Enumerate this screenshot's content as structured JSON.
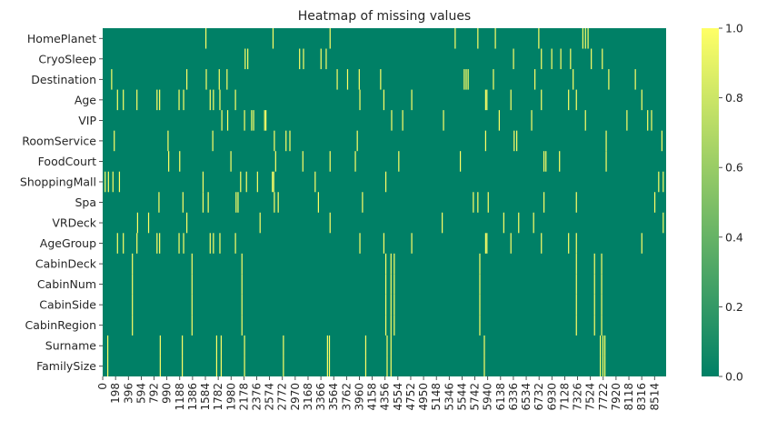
{
  "chart_data": {
    "type": "heatmap",
    "title": "Heatmap of missing values",
    "xlabel": "",
    "ylabel": "",
    "colormap": "summer",
    "color_low": "#008066",
    "color_high": "#ffff66",
    "vmin": 0.0,
    "vmax": 1.0,
    "n_rows_total": 8693,
    "rows": [
      "HomePlanet",
      "CryoSleep",
      "Destination",
      "Age",
      "VIP",
      "RoomService",
      "FoodCourt",
      "ShoppingMall",
      "Spa",
      "VRDeck",
      "AgeGroup",
      "CabinDeck",
      "CabinNum",
      "CabinSide",
      "CabinRegion",
      "Surname",
      "FamilySize"
    ],
    "x_tick_labels": [
      "0",
      "198",
      "396",
      "594",
      "792",
      "990",
      "1188",
      "1386",
      "1584",
      "1782",
      "1980",
      "2178",
      "2376",
      "2574",
      "2772",
      "2970",
      "3168",
      "3366",
      "3564",
      "3762",
      "3960",
      "4158",
      "4356",
      "4554",
      "4752",
      "4950",
      "5148",
      "5346",
      "5544",
      "5742",
      "5940",
      "6138",
      "6336",
      "6534",
      "6732",
      "6930",
      "7128",
      "7326",
      "7524",
      "7722",
      "7920",
      "8118",
      "8316",
      "8514"
    ],
    "colorbar_ticks": [
      "0.0",
      "0.2",
      "0.4",
      "0.6",
      "0.8",
      "1.0"
    ],
    "colorbar_tick_values": [
      0.0,
      0.2,
      0.4,
      0.6,
      0.8,
      1.0
    ],
    "missing_row_indices": [
      [
        1584,
        2620,
        3500,
        5430,
        5780,
        6050,
        6720,
        7400,
        7440,
        7480
      ],
      [
        2190,
        2230,
        3030,
        3090,
        3360,
        3440,
        6330,
        6760,
        6920,
        7060,
        7210,
        7530,
        7700
      ],
      [
        130,
        1290,
        1590,
        1790,
        1910,
        3610,
        3770,
        3950,
        4280,
        5570,
        5600,
        5630,
        6020,
        6660,
        7250,
        7800,
        8210
      ],
      [
        220,
        310,
        520,
        830,
        870,
        1170,
        1240,
        1650,
        1700,
        1800,
        2040,
        3960,
        4330,
        4760,
        5900,
        5920,
        6290,
        6760,
        7180,
        7300,
        8310
      ],
      [
        1830,
        1920,
        2180,
        2290,
        2320,
        2490,
        2510,
        4450,
        4620,
        5250,
        6110,
        6610,
        7440,
        8080,
        8400,
        8460
      ],
      [
        170,
        1000,
        1690,
        2640,
        2820,
        2880,
        3920,
        5900,
        6340,
        6380,
        7760,
        8620
      ],
      [
        1010,
        1180,
        1970,
        2660,
        3080,
        3500,
        3890,
        4560,
        5510,
        6800,
        6830,
        7040,
        7760
      ],
      [
        30,
        80,
        150,
        250,
        1540,
        2120,
        2210,
        2380,
        2610,
        2630,
        3270,
        4360,
        8570,
        8640
      ],
      [
        860,
        1230,
        1540,
        1620,
        2050,
        2080,
        2640,
        2700,
        3320,
        4000,
        5710,
        5780,
        5940,
        6800,
        7300,
        8510
      ],
      [
        530,
        700,
        1290,
        2420,
        3500,
        5230,
        6180,
        6410,
        6640,
        8640
      ],
      [
        220,
        310,
        520,
        830,
        870,
        1170,
        1240,
        1650,
        1700,
        1800,
        2040,
        3960,
        4330,
        4760,
        5900,
        5920,
        6290,
        6760,
        7180,
        7300,
        8310
      ],
      [
        450,
        1370,
        2140,
        4360,
        4440,
        4490,
        5810,
        7300,
        7580,
        7690
      ],
      [
        450,
        1370,
        2140,
        4360,
        4440,
        4490,
        5810,
        7300,
        7580,
        7690
      ],
      [
        450,
        1370,
        2140,
        4360,
        4440,
        4490,
        5810,
        7300,
        7580,
        7690
      ],
      [
        450,
        1370,
        2140,
        4360,
        4440,
        4490,
        5810,
        7300,
        7580,
        7690
      ],
      [
        70,
        880,
        1220,
        1750,
        1820,
        2180,
        2780,
        3460,
        3490,
        4050,
        4380,
        4440,
        5880,
        7670,
        7710,
        7740
      ],
      [
        70,
        880,
        1220,
        1750,
        1820,
        2180,
        2780,
        3460,
        3490,
        4050,
        4380,
        4440,
        5880,
        7670,
        7710,
        7740
      ]
    ]
  }
}
